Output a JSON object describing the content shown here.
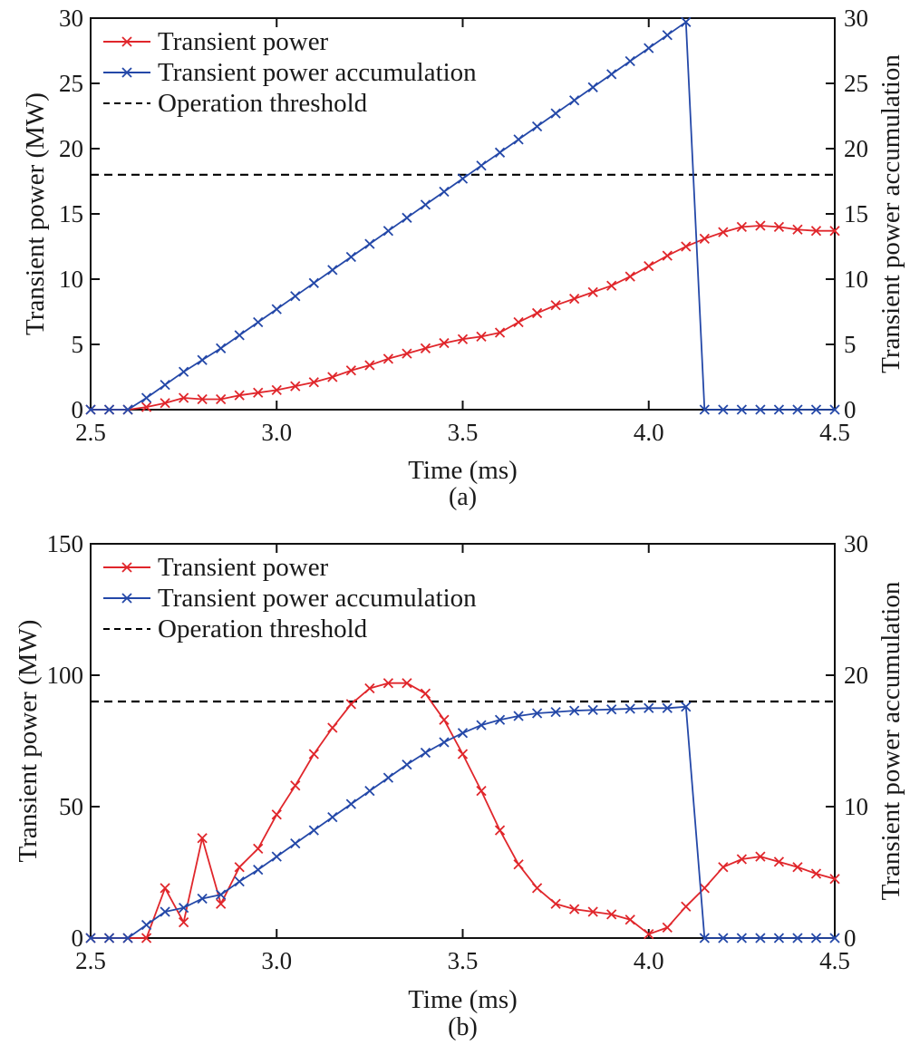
{
  "chart_data": [
    {
      "type": "line",
      "panel_label": "(a)",
      "xlabel": "Time (ms)",
      "ylabel": "Transient power (MW)",
      "y2label": "Transient power accumulation",
      "xlim": [
        2.5,
        4.5
      ],
      "ylim": [
        0,
        30
      ],
      "y2lim": [
        0,
        30
      ],
      "xticks": [
        "2.5",
        "3.0",
        "3.5",
        "4.0",
        "4.5"
      ],
      "yticks": [
        "0",
        "5",
        "10",
        "15",
        "20",
        "25",
        "30"
      ],
      "y2ticks": [
        "0",
        "5",
        "10",
        "15",
        "20",
        "25",
        "30"
      ],
      "legend_position": "top-left",
      "x": [
        2.5,
        2.55,
        2.6,
        2.65,
        2.7,
        2.75,
        2.8,
        2.85,
        2.9,
        2.95,
        3.0,
        3.05,
        3.1,
        3.15,
        3.2,
        3.25,
        3.3,
        3.35,
        3.4,
        3.45,
        3.5,
        3.55,
        3.6,
        3.65,
        3.7,
        3.75,
        3.8,
        3.85,
        3.9,
        3.95,
        4.0,
        4.05,
        4.1,
        4.15,
        4.2,
        4.25,
        4.3,
        4.35,
        4.4,
        4.45,
        4.5
      ],
      "series": [
        {
          "name": "Transient power",
          "axis": "left",
          "color": "#e0262b",
          "values": [
            0,
            0,
            0,
            0.2,
            0.5,
            0.9,
            0.8,
            0.8,
            1.1,
            1.3,
            1.5,
            1.8,
            2.1,
            2.5,
            3.0,
            3.4,
            3.9,
            4.3,
            4.7,
            5.1,
            5.4,
            5.6,
            5.9,
            6.7,
            7.4,
            8.0,
            8.5,
            9.0,
            9.5,
            10.2,
            11.0,
            11.8,
            12.5,
            13.1,
            13.6,
            14.0,
            14.1,
            14.0,
            13.8,
            13.7,
            13.7
          ]
        },
        {
          "name": "Transient power accumulation",
          "axis": "right",
          "color": "#2448a8",
          "values": [
            0,
            0,
            0,
            0.9,
            1.9,
            2.9,
            3.8,
            4.7,
            5.7,
            6.7,
            7.7,
            8.7,
            9.7,
            10.7,
            11.7,
            12.7,
            13.7,
            14.7,
            15.7,
            16.7,
            17.7,
            18.7,
            19.7,
            20.7,
            21.7,
            22.7,
            23.7,
            24.7,
            25.7,
            26.7,
            27.7,
            28.7,
            29.7,
            0,
            0,
            0,
            0,
            0,
            0,
            0,
            0
          ]
        }
      ],
      "threshold": {
        "name": "Operation threshold",
        "axis": "right",
        "value": 18,
        "color": "#000000"
      }
    },
    {
      "type": "line",
      "panel_label": "(b)",
      "xlabel": "Time (ms)",
      "ylabel": "Transient power (MW)",
      "y2label": "Transient power accumulation",
      "xlim": [
        2.5,
        4.5
      ],
      "ylim": [
        0,
        150
      ],
      "y2lim": [
        0,
        30
      ],
      "xticks": [
        "2.5",
        "3.0",
        "3.5",
        "4.0",
        "4.5"
      ],
      "yticks": [
        "0",
        "50",
        "100",
        "150"
      ],
      "y2ticks": [
        "0",
        "10",
        "20",
        "30"
      ],
      "legend_position": "top-left",
      "x": [
        2.5,
        2.55,
        2.6,
        2.65,
        2.7,
        2.75,
        2.8,
        2.85,
        2.9,
        2.95,
        3.0,
        3.05,
        3.1,
        3.15,
        3.2,
        3.25,
        3.3,
        3.35,
        3.4,
        3.45,
        3.5,
        3.55,
        3.6,
        3.65,
        3.7,
        3.75,
        3.8,
        3.85,
        3.9,
        3.95,
        4.0,
        4.05,
        4.1,
        4.15,
        4.2,
        4.25,
        4.3,
        4.35,
        4.4,
        4.45,
        4.5
      ],
      "series": [
        {
          "name": "Transient power",
          "axis": "left",
          "color": "#e0262b",
          "values": [
            0,
            0,
            0,
            0,
            19,
            6,
            38,
            13,
            27,
            34,
            47,
            58,
            70,
            80,
            89,
            95,
            97,
            97,
            93,
            83,
            70,
            56,
            41,
            28,
            19,
            13,
            11,
            10,
            9,
            7,
            1.5,
            4,
            12,
            19,
            27,
            30,
            31,
            29,
            27,
            24.5,
            22.5
          ]
        },
        {
          "name": "Transient power accumulation",
          "axis": "right",
          "color": "#2448a8",
          "values": [
            0,
            0,
            0,
            1,
            2,
            2.3,
            3,
            3.3,
            4.3,
            5.2,
            6.2,
            7.2,
            8.2,
            9.2,
            10.2,
            11.2,
            12.2,
            13.2,
            14.1,
            14.9,
            15.6,
            16.2,
            16.6,
            16.9,
            17.1,
            17.2,
            17.3,
            17.35,
            17.4,
            17.45,
            17.5,
            17.5,
            17.6,
            0,
            0,
            0,
            0,
            0,
            0,
            0,
            0
          ]
        }
      ],
      "threshold": {
        "name": "Operation threshold",
        "axis": "right",
        "value": 18,
        "color": "#000000"
      }
    }
  ]
}
